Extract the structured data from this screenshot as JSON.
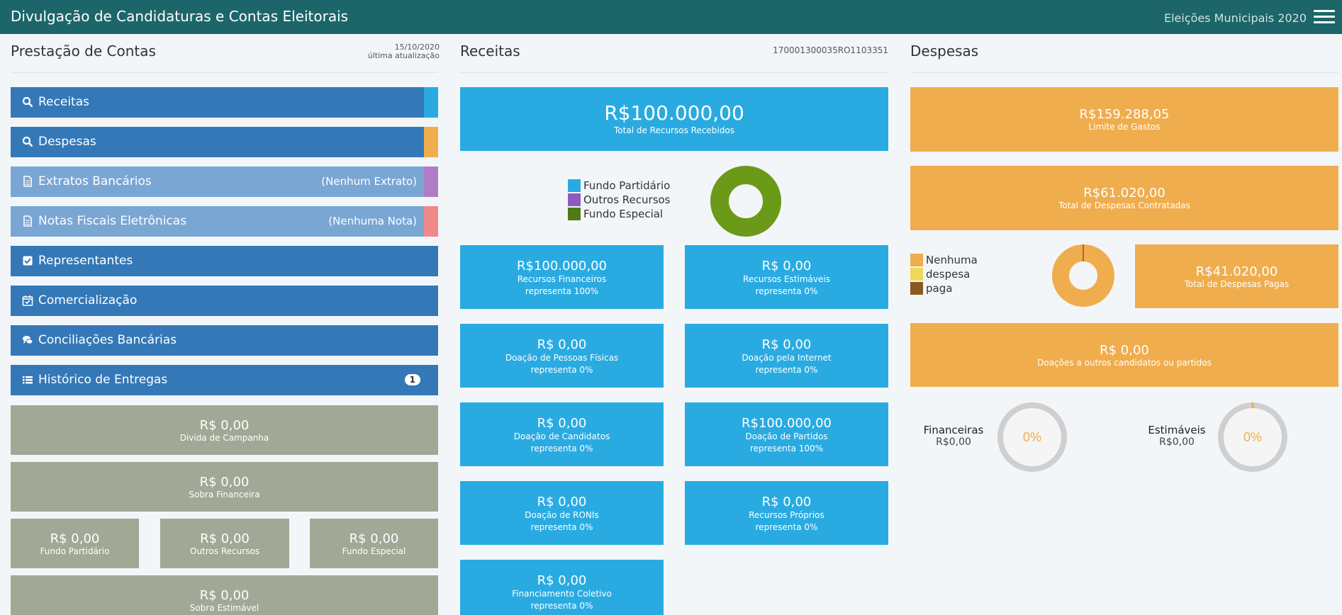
{
  "header": {
    "title": "Divulgação de Candidaturas e Contas Eleitorais",
    "election": "Eleições Municipais 2020"
  },
  "left": {
    "title": "Prestação de Contas",
    "update_date": "15/10/2020",
    "update_label": "última atualização",
    "nav": [
      {
        "label": "Receitas",
        "icon": "search-icon",
        "side_color": "#29abe2"
      },
      {
        "label": "Despesas",
        "icon": "search-icon",
        "side_color": "#f0ad4e"
      },
      {
        "label": "Extratos Bancários",
        "icon": "document-icon",
        "note": "(Nenhum Extrato)",
        "side_color": "#b07cc6"
      },
      {
        "label": "Notas Fiscais Eletrônicas",
        "icon": "document-icon",
        "note": "(Nenhuma Nota)",
        "side_color": "#f08a8a"
      },
      {
        "label": "Representantes",
        "icon": "checkbox-icon"
      },
      {
        "label": "Comercialização",
        "icon": "calendar-check-icon"
      },
      {
        "label": "Conciliações Bancárias",
        "icon": "chat-icon"
      },
      {
        "label": "Histórico de Entregas",
        "icon": "list-icon",
        "badge": "1"
      }
    ],
    "divida": {
      "value": "R$ 0,00",
      "caption": "Divida de Campanha"
    },
    "sobra_financeira": {
      "value": "R$ 0,00",
      "caption": "Sobra Financeira"
    },
    "fundo_partidario": {
      "value": "R$ 0,00",
      "caption": "Fundo Partidário"
    },
    "outros_recursos": {
      "value": "R$ 0,00",
      "caption": "Outros Recursos"
    },
    "fundo_especial": {
      "value": "R$ 0,00",
      "caption": "Fundo Especial"
    },
    "sobra_estimavel": {
      "value": "R$ 0,00",
      "caption": "Sobra Estimável"
    }
  },
  "receitas": {
    "title": "Receitas",
    "code": "170001300035RO1103351",
    "total": {
      "value": "R$100.000,00",
      "caption": "Total de Recursos Recebidos"
    },
    "legend": [
      {
        "label": "Fundo Partidário",
        "color": "#29abe2"
      },
      {
        "label": "Outros Recursos",
        "color": "#8e5bbf"
      },
      {
        "label": "Fundo Especial",
        "color": "#4f7a16"
      }
    ],
    "donut_color": "#6a9a18",
    "cards": [
      {
        "value": "R$100.000,00",
        "caption": "Recursos Financeiros",
        "share": "representa 100%"
      },
      {
        "value": "R$ 0,00",
        "caption": "Recursos Estimáveis",
        "share": "representa 0%"
      },
      {
        "value": "R$ 0,00",
        "caption": "Doação de Pessoas Físicas",
        "share": "representa 0%"
      },
      {
        "value": "R$ 0,00",
        "caption": "Doação pela Internet",
        "share": "representa 0%"
      },
      {
        "value": "R$ 0,00",
        "caption": "Doação de Candidatos",
        "share": "representa 0%"
      },
      {
        "value": "R$100.000,00",
        "caption": "Doação de Partidos",
        "share": "representa 100%"
      },
      {
        "value": "R$ 0,00",
        "caption": "Doação de RONIs",
        "share": "representa 0%"
      },
      {
        "value": "R$ 0,00",
        "caption": "Recursos Próprios",
        "share": "representa 0%"
      },
      {
        "value": "R$ 0,00",
        "caption": "Financiamento Coletivo",
        "share": "representa 0%"
      }
    ]
  },
  "despesas": {
    "title": "Despesas",
    "limite": {
      "value": "R$159.288,05",
      "caption": "Limite de Gastos"
    },
    "contratadas": {
      "value": "R$61.020,00",
      "caption": "Total de Despesas Contratadas"
    },
    "pagas": {
      "value": "R$41.020,00",
      "caption": "Total de Despesas Pagas"
    },
    "legend": [
      {
        "label": "Nenhuma",
        "color": "#f0ad4e"
      },
      {
        "label": "despesa",
        "color": "#efd85a"
      },
      {
        "label": "paga",
        "color": "#8a5a1e"
      }
    ],
    "doacoes": {
      "value": "R$ 0,00",
      "caption": "Doações a outros candidatos ou partidos"
    },
    "financeiras": {
      "label": "Financeiras",
      "value": "R$0,00",
      "percent": "0%"
    },
    "estimaveis": {
      "label": "Estimáveis",
      "value": "R$0,00",
      "percent": "0%"
    }
  }
}
